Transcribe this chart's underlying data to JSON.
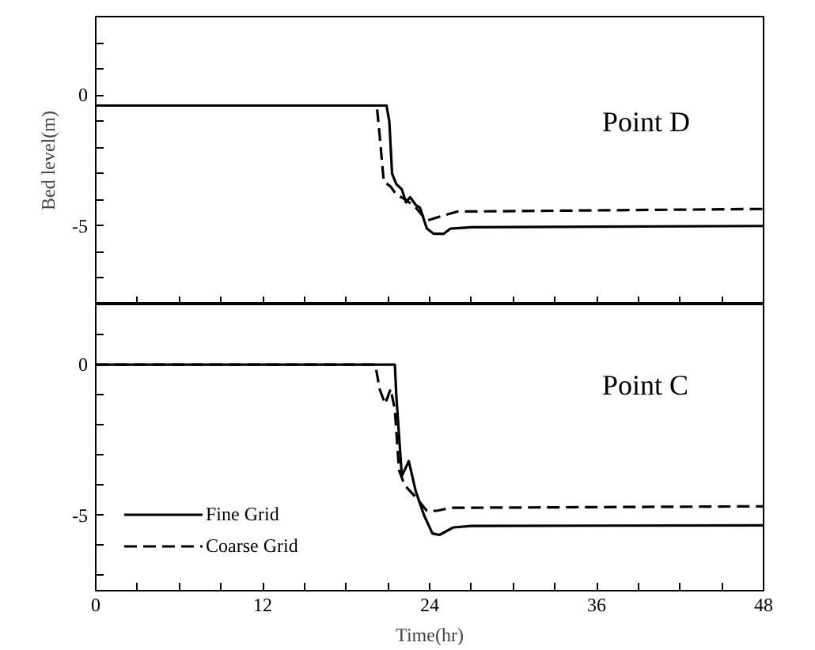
{
  "chart_data": [
    {
      "type": "line",
      "annotations": [
        "Point D"
      ],
      "ylabel": "Bed level(m)",
      "xlim": [
        0,
        48
      ],
      "ylim": [
        -8,
        3
      ],
      "tick_labels": "y",
      "legend": false,
      "grid": false,
      "xticks": [
        0,
        {
          "value": 3,
          "label": null
        },
        {
          "value": 6,
          "label": null
        },
        {
          "value": 9,
          "label": null
        },
        12,
        {
          "value": 15,
          "label": null
        },
        {
          "value": 18,
          "label": null
        },
        {
          "value": 21,
          "label": null
        },
        24,
        {
          "value": 27,
          "label": null
        },
        {
          "value": 30,
          "label": null
        },
        {
          "value": 33,
          "label": null
        },
        36,
        {
          "value": 39,
          "label": null
        },
        {
          "value": 42,
          "label": null
        },
        {
          "value": 45,
          "label": null
        },
        48
      ],
      "yticks": [
        {
          "value": -7,
          "label": null
        },
        {
          "value": -6,
          "label": null
        },
        -5,
        {
          "value": -4,
          "label": null
        },
        {
          "value": -3,
          "label": null
        },
        {
          "value": -2,
          "label": null
        },
        {
          "value": -1,
          "label": null
        },
        0,
        {
          "value": 1,
          "label": null
        },
        {
          "value": 2,
          "label": null
        }
      ],
      "series": [
        {
          "color": "#000000",
          "line_style": "solid",
          "x": [
            0,
            20.9,
            21.1,
            21.3,
            21.6,
            22,
            22.3,
            22.6,
            23,
            23.3,
            23.8,
            24.3,
            25,
            25.5,
            27,
            48
          ],
          "values": [
            -0.4,
            -0.4,
            -1,
            -3.0,
            -3.4,
            -3.6,
            -4.1,
            -3.9,
            -4.2,
            -4.3,
            -5.1,
            -5.3,
            -5.3,
            -5.1,
            -5.05,
            -5.0
          ]
        },
        {
          "color": "#000000",
          "line_style": "dashed",
          "x": [
            0,
            20.2,
            20.4,
            20.7,
            21.2,
            21.6,
            22.3,
            23,
            23.8,
            25,
            26,
            48
          ],
          "values": [
            -0.4,
            -0.4,
            -1.5,
            -3.3,
            -3.5,
            -3.8,
            -4.0,
            -4.3,
            -4.8,
            -4.6,
            -4.45,
            -4.35
          ]
        }
      ]
    },
    {
      "type": "line",
      "annotations": [
        "Point C"
      ],
      "xlabel": "Time(hr)",
      "xlim": [
        0,
        48
      ],
      "ylim": [
        -7.5,
        2
      ],
      "legend": "bottom left",
      "grid": false,
      "xticks": [
        0,
        {
          "value": 3,
          "label": null
        },
        {
          "value": 6,
          "label": null
        },
        {
          "value": 9,
          "label": null
        },
        12,
        {
          "value": 15,
          "label": null
        },
        {
          "value": 18,
          "label": null
        },
        {
          "value": 21,
          "label": null
        },
        24,
        {
          "value": 27,
          "label": null
        },
        {
          "value": 30,
          "label": null
        },
        {
          "value": 33,
          "label": null
        },
        36,
        {
          "value": 39,
          "label": null
        },
        {
          "value": 42,
          "label": null
        },
        {
          "value": 45,
          "label": null
        },
        48
      ],
      "yticks": [
        {
          "value": -7,
          "label": null
        },
        {
          "value": -6,
          "label": null
        },
        -5,
        {
          "value": -4,
          "label": null
        },
        {
          "value": -3,
          "label": null
        },
        {
          "value": -2,
          "label": null
        },
        {
          "value": -1,
          "label": null
        },
        0,
        {
          "value": 1,
          "label": null
        }
      ],
      "series": [
        {
          "name": "Fine Grid",
          "color": "#000000",
          "line_style": "solid",
          "x": [
            0,
            21.5,
            21.6,
            22,
            22.5,
            23,
            23.6,
            24.2,
            24.7,
            25.7,
            27,
            48
          ],
          "values": [
            0,
            0,
            -1,
            -3.7,
            -3.2,
            -4.2,
            -5.0,
            -5.6,
            -5.65,
            -5.4,
            -5.35,
            -5.33
          ]
        },
        {
          "name": "Coarse Grid",
          "color": "#000000",
          "line_style": "dashed",
          "x": [
            0,
            20.1,
            20.4,
            20.8,
            21.2,
            21.5,
            21.8,
            22.2,
            23,
            23.8,
            24.5,
            25.5,
            48
          ],
          "values": [
            0,
            0,
            -0.8,
            -1.3,
            -0.8,
            -1.5,
            -3.5,
            -4.0,
            -4.4,
            -4.85,
            -4.85,
            -4.75,
            -4.7
          ]
        }
      ]
    }
  ]
}
